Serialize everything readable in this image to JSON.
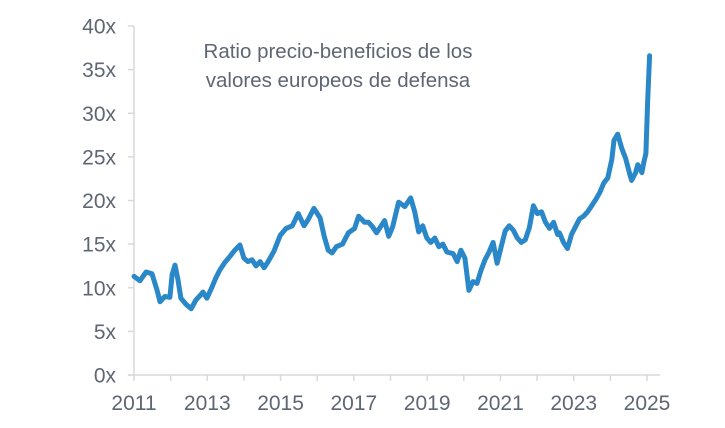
{
  "chart_data": {
    "type": "line",
    "title": [
      "Ratio precio-beneficios de los",
      "valores europeos de defensa"
    ],
    "xlabel": "",
    "ylabel": "",
    "xlim": [
      2011,
      2025.1
    ],
    "ylim": [
      0,
      40
    ],
    "grid": false,
    "legend": "none",
    "x_ticks": [
      "2011",
      "2013",
      "2015",
      "2017",
      "2019",
      "2021",
      "2023",
      "2025"
    ],
    "x_tick_values": [
      2011,
      2013,
      2015,
      2017,
      2019,
      2021,
      2023,
      2025
    ],
    "y_ticks": [
      "0x",
      "5x",
      "10x",
      "15x",
      "20x",
      "25x",
      "30x",
      "35x",
      "40x"
    ],
    "y_tick_values": [
      0,
      5,
      10,
      15,
      20,
      25,
      30,
      35,
      40
    ],
    "line_color": "#2b88c8",
    "axis_color": "#d9d9d9",
    "series": [
      {
        "name": "Ratio precio-beneficios",
        "x": [
          2011.0,
          2011.16,
          2011.33,
          2011.49,
          2011.63,
          2011.71,
          2011.84,
          2011.98,
          2012.04,
          2012.12,
          2012.2,
          2012.28,
          2012.42,
          2012.56,
          2012.69,
          2012.8,
          2012.88,
          2012.99,
          2013.12,
          2013.23,
          2013.34,
          2013.48,
          2013.62,
          2013.75,
          2013.89,
          2014.0,
          2014.11,
          2014.22,
          2014.33,
          2014.44,
          2014.55,
          2014.66,
          2014.82,
          2014.99,
          2015.15,
          2015.32,
          2015.48,
          2015.64,
          2015.75,
          2015.91,
          2016.08,
          2016.19,
          2016.3,
          2016.41,
          2016.52,
          2016.69,
          2016.85,
          2017.02,
          2017.13,
          2017.29,
          2017.4,
          2017.51,
          2017.62,
          2017.73,
          2017.84,
          2017.95,
          2018.06,
          2018.22,
          2018.39,
          2018.55,
          2018.66,
          2018.77,
          2018.88,
          2018.99,
          2019.1,
          2019.21,
          2019.32,
          2019.43,
          2019.54,
          2019.71,
          2019.82,
          2019.92,
          2020.03,
          2020.14,
          2020.25,
          2020.36,
          2020.47,
          2020.58,
          2020.69,
          2020.8,
          2020.91,
          2021.02,
          2021.13,
          2021.24,
          2021.35,
          2021.46,
          2021.57,
          2021.68,
          2021.79,
          2021.9,
          2022.01,
          2022.12,
          2022.23,
          2022.34,
          2022.45,
          2022.56,
          2022.61,
          2022.72,
          2022.83,
          2022.94,
          2023.05,
          2023.16,
          2023.27,
          2023.38,
          2023.49,
          2023.6,
          2023.71,
          2023.82,
          2023.93,
          2024.04,
          2024.1,
          2024.2,
          2024.31,
          2024.42,
          2024.53,
          2024.58,
          2024.69,
          2024.75,
          2024.86,
          2024.91,
          2024.97,
          2025.02,
          2025.07
        ],
        "values": [
          11.3,
          10.8,
          11.8,
          11.6,
          9.7,
          8.4,
          9.0,
          8.9,
          11.5,
          12.6,
          10.9,
          8.8,
          8.1,
          7.6,
          8.6,
          9.1,
          9.5,
          8.8,
          10.0,
          11.1,
          12.0,
          12.9,
          13.6,
          14.3,
          14.9,
          13.4,
          13.0,
          13.2,
          12.5,
          13.0,
          12.3,
          13.0,
          14.2,
          16.0,
          16.8,
          17.1,
          18.5,
          17.1,
          17.8,
          19.1,
          18.0,
          15.9,
          14.3,
          14.0,
          14.7,
          15.0,
          16.3,
          16.8,
          18.2,
          17.5,
          17.5,
          17.0,
          16.3,
          17.0,
          17.7,
          15.9,
          17.0,
          19.8,
          19.3,
          20.3,
          18.7,
          16.4,
          17.1,
          15.7,
          15.2,
          15.7,
          14.7,
          15.0,
          14.1,
          13.9,
          13.0,
          14.3,
          13.4,
          9.7,
          10.7,
          10.5,
          12.0,
          13.2,
          14.1,
          15.2,
          12.8,
          14.7,
          16.5,
          17.1,
          16.6,
          15.7,
          15.2,
          15.5,
          16.9,
          19.4,
          18.5,
          18.7,
          17.5,
          16.8,
          17.5,
          16.1,
          16.3,
          15.2,
          14.5,
          16.1,
          17.0,
          17.9,
          18.2,
          18.7,
          19.4,
          20.1,
          20.9,
          22.0,
          22.6,
          24.7,
          26.9,
          27.6,
          26.0,
          24.8,
          23.0,
          22.3,
          23.2,
          24.1,
          23.2,
          24.3,
          25.4,
          31.5,
          36.6
        ]
      }
    ]
  }
}
